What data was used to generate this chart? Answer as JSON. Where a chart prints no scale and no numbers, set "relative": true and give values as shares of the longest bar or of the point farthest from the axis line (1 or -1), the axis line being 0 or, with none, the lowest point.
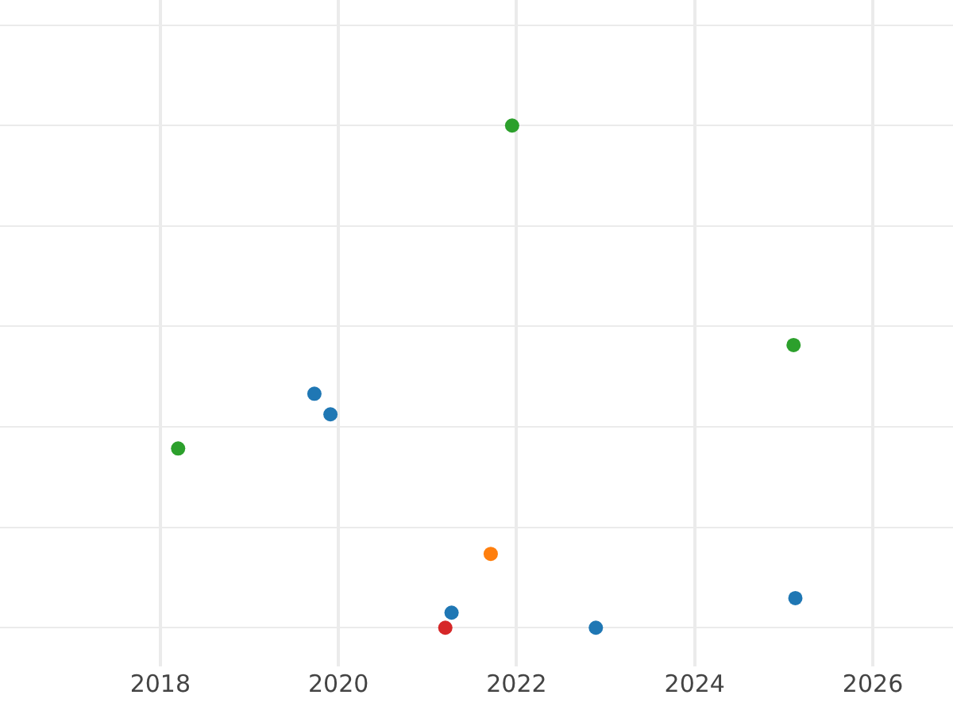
{
  "chart_data": {
    "type": "scatter",
    "relative": true,
    "grid": true,
    "marker": "circle",
    "xlim": [
      2016.2,
      2026.9
    ],
    "xticks": [
      2018,
      2020,
      2022,
      2024,
      2026
    ],
    "series": [
      {
        "color": "#1f77b4",
        "x": [
          2019.73,
          2019.91,
          2021.27,
          2022.89,
          2025.13
        ],
        "values": [
          0.466,
          0.425,
          0.03,
          0,
          0.059
        ]
      },
      {
        "color": "#2ca02c",
        "x": [
          2018.2,
          2021.95,
          2025.11
        ],
        "values": [
          0.357,
          1,
          0.563
        ]
      },
      {
        "color": "#ff7f0e",
        "x": [
          2021.71
        ],
        "values": [
          0.147
        ]
      },
      {
        "color": "#d62728",
        "x": [
          2021.2
        ],
        "values": [
          0
        ]
      }
    ]
  }
}
